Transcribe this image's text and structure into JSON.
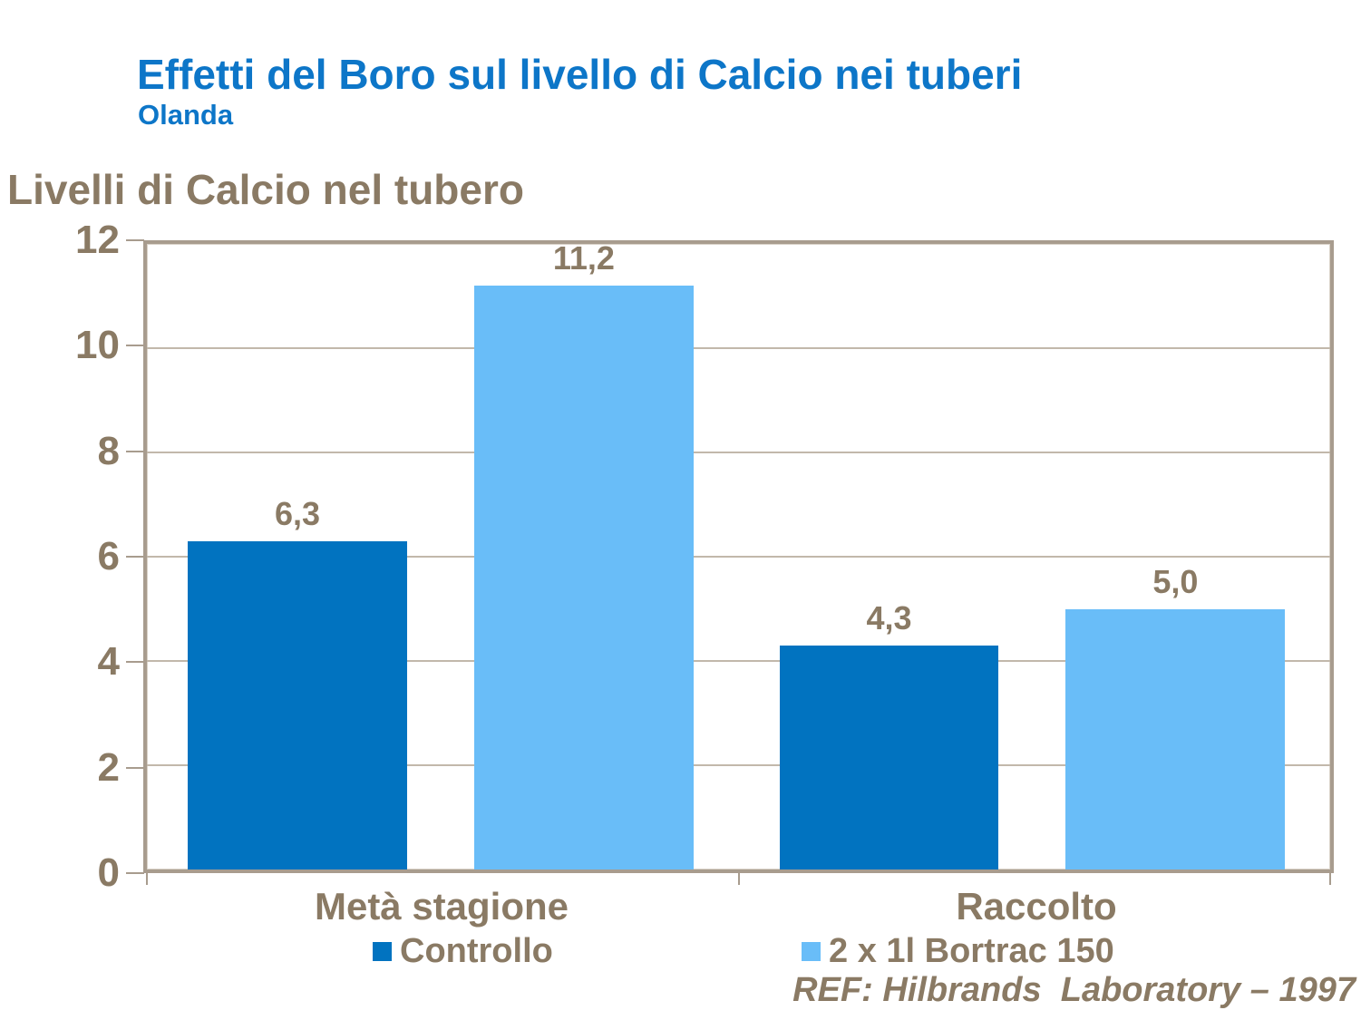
{
  "slide": {
    "title": "Effetti del Boro sul livello di Calcio nei tuberi",
    "subtitle": "Olanda",
    "footer": "REF: Hilbrands  Laboratory – 1997"
  },
  "colors": {
    "title_blue": "#0d76c8",
    "text_brown": "#8a7a64",
    "series_dark_blue": "#0173c0",
    "series_light_blue": "#69bdf8",
    "plot_border": "#a89c8e",
    "gridline": "#c2b8ab"
  },
  "chart_data": {
    "type": "bar",
    "title": "Livelli di Calcio nel tubero",
    "categories": [
      "Metà stagione",
      "Raccolto"
    ],
    "series": [
      {
        "name": "Controllo",
        "color": "#0173c0",
        "values": [
          6.3,
          4.3
        ],
        "value_labels": [
          "6,3",
          "4,3"
        ]
      },
      {
        "name": "2 x 1l Bortrac 150",
        "color": "#69bdf8",
        "values": [
          11.2,
          5.0
        ],
        "value_labels": [
          "11,2",
          "5,0"
        ]
      }
    ],
    "xlabel": "",
    "ylabel": "Livelli di Calcio nel tubero",
    "ylim": [
      0,
      12
    ],
    "yticks": [
      0,
      2,
      4,
      6,
      8,
      10,
      12
    ],
    "grid": true,
    "legend_position": "bottom",
    "value_label_decimal": "comma"
  }
}
